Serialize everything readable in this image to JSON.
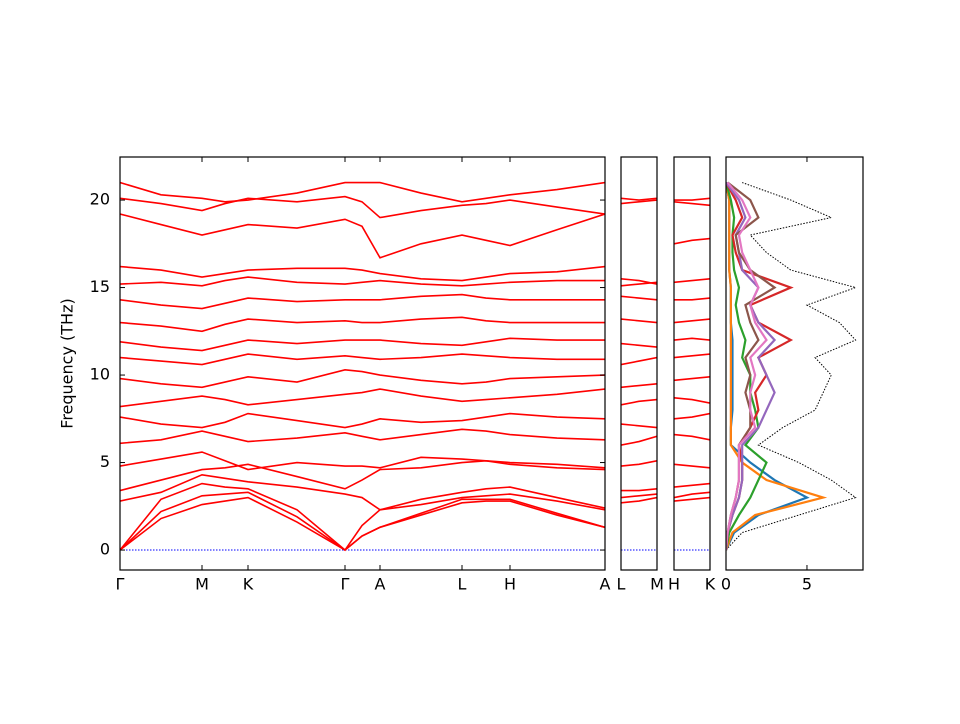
{
  "chart_data": [
    {
      "type": "line",
      "ylabel": "Frequency (THz)",
      "color": "#ff0000",
      "xlim": [
        0,
        4.85
      ],
      "ylim": [
        -1.14,
        22.46
      ],
      "xticks": [
        {
          "value": 0,
          "label": "Γ"
        },
        {
          "value": 0.82,
          "label": "M"
        },
        {
          "value": 1.28,
          "label": "K"
        },
        {
          "value": 2.25,
          "label": "Γ"
        },
        {
          "value": 2.6,
          "label": "A"
        },
        {
          "value": 3.42,
          "label": "L"
        },
        {
          "value": 3.9,
          "label": "H"
        },
        {
          "value": 4.85,
          "label": "A"
        }
      ],
      "yticks": [
        0,
        5,
        10,
        15,
        20
      ],
      "hline": {
        "value": 0,
        "color": "#0000ff"
      },
      "x": [
        0,
        0.41,
        0.82,
        1.05,
        1.28,
        1.77,
        2.25,
        2.42,
        2.6,
        3.01,
        3.42,
        3.66,
        3.9,
        4.37,
        4.85
      ],
      "series": [
        {
          "values": [
            0,
            1.8,
            2.6,
            2.8,
            3.0,
            1.6,
            0,
            0.8,
            1.3,
            2.0,
            2.7,
            2.8,
            2.8,
            2.0,
            1.3
          ]
        },
        {
          "values": [
            0,
            2.2,
            3.1,
            3.2,
            3.3,
            1.9,
            0,
            0.8,
            1.3,
            2.1,
            2.9,
            2.9,
            2.9,
            2.1,
            1.3
          ]
        },
        {
          "values": [
            0,
            2.9,
            3.8,
            3.6,
            3.5,
            2.3,
            0,
            1.4,
            2.3,
            2.6,
            3.0,
            3.1,
            3.2,
            2.8,
            2.3
          ]
        },
        {
          "values": [
            2.8,
            3.3,
            4.3,
            4.1,
            3.9,
            3.6,
            3.2,
            3.0,
            2.3,
            2.9,
            3.3,
            3.5,
            3.6,
            3.0,
            2.4
          ]
        },
        {
          "values": [
            3.4,
            4.0,
            4.6,
            4.7,
            4.9,
            4.2,
            3.5,
            4.0,
            4.6,
            4.7,
            5.0,
            5.1,
            4.9,
            4.7,
            4.6
          ]
        },
        {
          "values": [
            4.8,
            5.2,
            5.6,
            5.1,
            4.6,
            5.0,
            4.8,
            4.8,
            4.7,
            5.3,
            5.2,
            5.1,
            5.0,
            4.9,
            4.7
          ]
        },
        {
          "values": [
            6.1,
            6.3,
            6.8,
            6.5,
            6.2,
            6.4,
            6.7,
            6.5,
            6.3,
            6.6,
            6.9,
            6.8,
            6.6,
            6.4,
            6.3
          ]
        },
        {
          "values": [
            7.6,
            7.2,
            7.0,
            7.3,
            7.8,
            7.4,
            7.0,
            7.2,
            7.5,
            7.3,
            7.4,
            7.6,
            7.8,
            7.6,
            7.5
          ]
        },
        {
          "values": [
            8.2,
            8.5,
            8.8,
            8.6,
            8.3,
            8.6,
            8.9,
            9.0,
            9.2,
            8.8,
            8.5,
            8.6,
            8.7,
            8.9,
            9.2
          ]
        },
        {
          "values": [
            9.8,
            9.5,
            9.3,
            9.6,
            9.9,
            9.6,
            10.3,
            10.2,
            10.0,
            9.7,
            9.5,
            9.6,
            9.8,
            9.9,
            10.0
          ]
        },
        {
          "values": [
            11.0,
            10.8,
            10.6,
            10.9,
            11.2,
            10.9,
            11.1,
            11.0,
            10.9,
            11.0,
            11.2,
            11.1,
            11.0,
            10.9,
            10.9
          ]
        },
        {
          "values": [
            11.9,
            11.6,
            11.4,
            11.7,
            12.0,
            11.8,
            12.0,
            12.0,
            12.0,
            11.8,
            11.7,
            11.9,
            12.1,
            12.0,
            12.0
          ]
        },
        {
          "values": [
            13.0,
            12.8,
            12.5,
            12.9,
            13.2,
            13.0,
            13.1,
            13.0,
            13.0,
            13.2,
            13.3,
            13.1,
            13.0,
            13.0,
            13.0
          ]
        },
        {
          "values": [
            14.3,
            14.0,
            13.8,
            14.1,
            14.4,
            14.2,
            14.3,
            14.3,
            14.3,
            14.5,
            14.6,
            14.4,
            14.3,
            14.3,
            14.3
          ]
        },
        {
          "values": [
            15.2,
            15.3,
            15.1,
            15.4,
            15.6,
            15.3,
            15.2,
            15.3,
            15.4,
            15.2,
            15.1,
            15.2,
            15.3,
            15.4,
            15.4
          ]
        },
        {
          "values": [
            16.2,
            16.0,
            15.6,
            15.8,
            16.0,
            16.1,
            16.1,
            16.0,
            15.8,
            15.5,
            15.4,
            15.6,
            15.8,
            15.9,
            16.2
          ]
        },
        {
          "values": [
            19.2,
            18.6,
            18.0,
            18.3,
            18.6,
            18.4,
            18.9,
            18.5,
            16.7,
            17.5,
            18.0,
            17.7,
            17.4,
            18.3,
            19.2
          ]
        },
        {
          "values": [
            20.1,
            19.8,
            19.4,
            19.8,
            20.1,
            19.9,
            20.2,
            19.9,
            19.0,
            19.4,
            19.7,
            19.8,
            20.0,
            19.6,
            19.2
          ]
        },
        {
          "values": [
            21.0,
            20.3,
            20.1,
            19.9,
            20.0,
            20.4,
            21.0,
            21.0,
            21.0,
            20.4,
            19.9,
            20.1,
            20.3,
            20.6,
            21.0
          ]
        }
      ]
    },
    {
      "type": "line",
      "color": "#ff0000",
      "xlim": [
        0,
        0.36
      ],
      "ylim": [
        -1.14,
        22.46
      ],
      "xticks": [
        {
          "value": 0,
          "label": "L"
        },
        {
          "value": 0.36,
          "label": "M"
        }
      ],
      "hline": {
        "value": 0,
        "color": "#0000ff"
      },
      "x": [
        0,
        0.18,
        0.36
      ],
      "series": [
        {
          "values": [
            2.7,
            2.8,
            3.0
          ]
        },
        {
          "values": [
            3.0,
            3.1,
            3.2
          ]
        },
        {
          "values": [
            3.4,
            3.4,
            3.5
          ]
        },
        {
          "values": [
            4.8,
            4.9,
            5.1
          ]
        },
        {
          "values": [
            6.0,
            6.2,
            6.5
          ]
        },
        {
          "values": [
            7.2,
            7.1,
            7.0
          ]
        },
        {
          "values": [
            8.3,
            8.5,
            8.6
          ]
        },
        {
          "values": [
            9.3,
            9.4,
            9.5
          ]
        },
        {
          "values": [
            10.6,
            10.8,
            11.0
          ]
        },
        {
          "values": [
            11.8,
            11.7,
            11.6
          ]
        },
        {
          "values": [
            13.2,
            13.1,
            13.0
          ]
        },
        {
          "values": [
            14.5,
            14.4,
            14.3
          ]
        },
        {
          "values": [
            15.1,
            15.2,
            15.3
          ]
        },
        {
          "values": [
            15.5,
            15.4,
            15.2
          ]
        },
        {
          "values": [
            19.8,
            19.9,
            20.0
          ]
        },
        {
          "values": [
            20.1,
            20.0,
            20.1
          ]
        }
      ]
    },
    {
      "type": "line",
      "color": "#ff0000",
      "xlim": [
        0,
        0.36
      ],
      "ylim": [
        -1.14,
        22.46
      ],
      "xticks": [
        {
          "value": 0,
          "label": "H"
        },
        {
          "value": 0.36,
          "label": "K"
        }
      ],
      "hline": {
        "value": 0,
        "color": "#0000ff"
      },
      "x": [
        0,
        0.18,
        0.36
      ],
      "series": [
        {
          "values": [
            2.8,
            2.9,
            3.0
          ]
        },
        {
          "values": [
            3.0,
            3.2,
            3.3
          ]
        },
        {
          "values": [
            3.6,
            3.7,
            3.8
          ]
        },
        {
          "values": [
            4.9,
            4.8,
            4.7
          ]
        },
        {
          "values": [
            6.6,
            6.5,
            6.3
          ]
        },
        {
          "values": [
            7.5,
            7.6,
            7.8
          ]
        },
        {
          "values": [
            8.7,
            8.6,
            8.4
          ]
        },
        {
          "values": [
            9.7,
            9.8,
            9.9
          ]
        },
        {
          "values": [
            11.0,
            11.1,
            11.2
          ]
        },
        {
          "values": [
            12.0,
            12.1,
            12.0
          ]
        },
        {
          "values": [
            13.0,
            13.1,
            13.2
          ]
        },
        {
          "values": [
            14.3,
            14.3,
            14.4
          ]
        },
        {
          "values": [
            15.3,
            15.4,
            15.5
          ]
        },
        {
          "values": [
            17.5,
            17.7,
            17.8
          ]
        },
        {
          "values": [
            19.9,
            19.8,
            19.7
          ]
        },
        {
          "values": [
            20.0,
            20.0,
            20.1
          ]
        }
      ]
    },
    {
      "type": "dos",
      "xlim": [
        0,
        8.46
      ],
      "ylim": [
        -1.14,
        22.46
      ],
      "xticks": [
        0,
        5
      ],
      "y": [
        0,
        1,
        2,
        3,
        4,
        5,
        6,
        7,
        8,
        9,
        10,
        11,
        12,
        13,
        14,
        15,
        16,
        17,
        18,
        19,
        20,
        21
      ],
      "series": [
        {
          "color": "#000000",
          "linestyle": "dotted",
          "values": [
            0,
            1.0,
            4.5,
            8.0,
            6.5,
            4.5,
            2.0,
            3.5,
            5.5,
            6.0,
            6.5,
            5.5,
            8.0,
            7.0,
            5.0,
            8.0,
            4.0,
            2.5,
            1.5,
            6.5,
            4.0,
            1.0
          ]
        },
        {
          "color": "#1f77b4",
          "values": [
            0,
            0.5,
            2.0,
            5.0,
            3.0,
            1.5,
            0.3,
            0.3,
            0.4,
            0.4,
            0.4,
            0.4,
            0.4,
            0.3,
            0.3,
            0.3,
            0.2,
            0.2,
            0.2,
            0.2,
            0.2,
            0
          ]
        },
        {
          "color": "#ff7f0e",
          "values": [
            0,
            0.4,
            1.8,
            6.0,
            2.5,
            1.0,
            0.3,
            0.3,
            0.3,
            0.3,
            0.3,
            0.3,
            0.3,
            0.3,
            0.3,
            0.3,
            0.2,
            0.2,
            0.2,
            0.2,
            0.2,
            0
          ]
        },
        {
          "color": "#2ca02c",
          "values": [
            0,
            0.2,
            0.8,
            1.5,
            2.0,
            2.5,
            1.2,
            2.0,
            1.8,
            1.5,
            1.5,
            1.0,
            1.2,
            0.8,
            0.6,
            0.8,
            0.5,
            0.4,
            0.4,
            0.5,
            0.3,
            0
          ]
        },
        {
          "color": "#d62728",
          "values": [
            0,
            0.1,
            0.4,
            0.8,
            1.0,
            1.0,
            0.8,
            1.5,
            2.0,
            1.8,
            2.5,
            2.0,
            4.0,
            2.0,
            1.5,
            4.0,
            1.0,
            0.6,
            0.4,
            1.0,
            0.6,
            0
          ]
        },
        {
          "color": "#9467bd",
          "values": [
            0,
            0.1,
            0.4,
            0.8,
            1.0,
            1.0,
            1.0,
            2.0,
            2.5,
            3.0,
            2.5,
            2.0,
            3.0,
            2.0,
            1.5,
            2.0,
            1.0,
            0.8,
            0.6,
            1.2,
            0.8,
            0
          ]
        },
        {
          "color": "#8c564b",
          "values": [
            0,
            0.1,
            0.3,
            0.6,
            0.8,
            0.8,
            0.8,
            1.5,
            1.5,
            1.2,
            1.5,
            1.2,
            2.0,
            1.5,
            1.2,
            3.0,
            1.5,
            0.8,
            0.6,
            2.0,
            1.5,
            0.1
          ]
        },
        {
          "color": "#e377c2",
          "values": [
            0,
            0.1,
            0.3,
            0.6,
            0.8,
            0.8,
            0.8,
            1.8,
            1.5,
            1.5,
            1.8,
            1.5,
            2.5,
            1.8,
            1.5,
            2.0,
            1.5,
            1.0,
            0.8,
            1.5,
            1.0,
            0.1
          ]
        }
      ]
    }
  ]
}
